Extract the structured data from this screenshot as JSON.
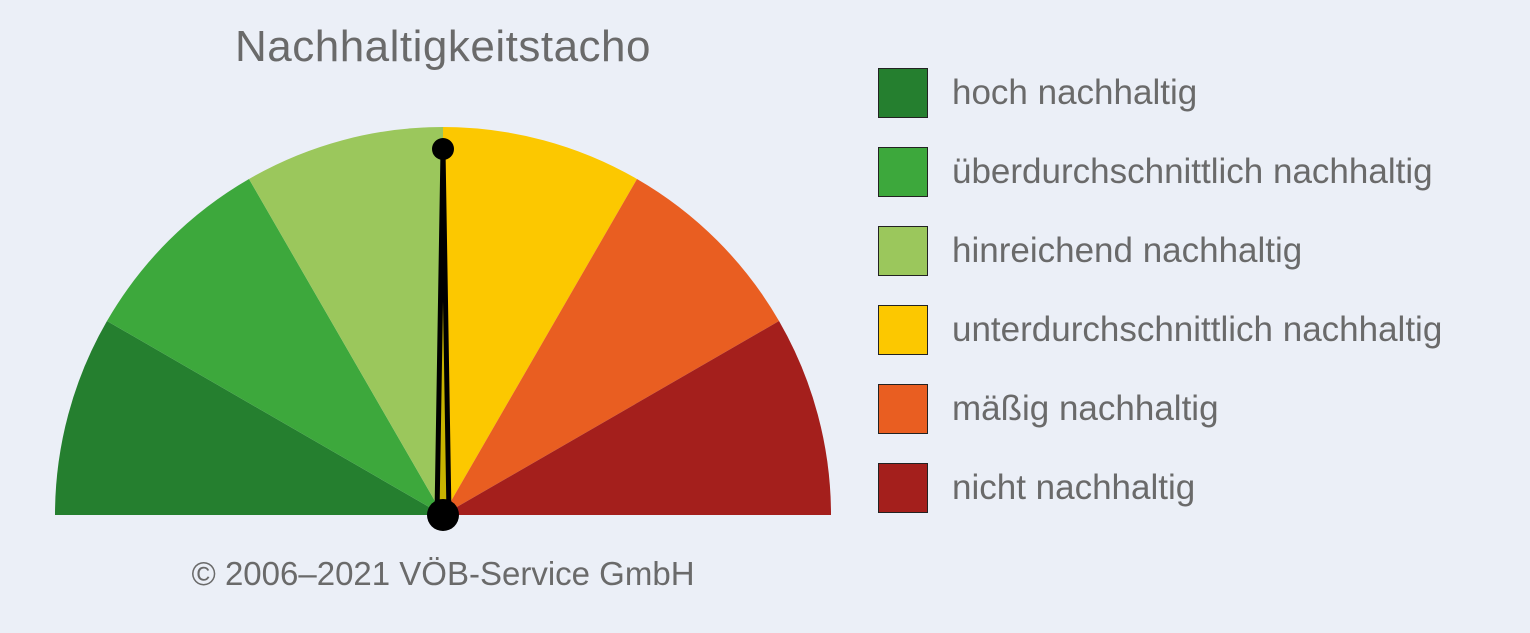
{
  "chart_data": {
    "type": "gauge",
    "title": "Nachhaltigkeitstacho",
    "footer": "© 2006–2021 VÖB-Service GmbH",
    "segments": [
      {
        "label": "hoch nachhaltig",
        "color": "#257f2f"
      },
      {
        "label": "überdurchschnittlich nachhaltig",
        "color": "#3da83c"
      },
      {
        "label": "hinreichend nachhaltig",
        "color": "#9bc75c"
      },
      {
        "label": "unterdurchschnittlich nachhaltig",
        "color": "#fcc800"
      },
      {
        "label": "mäßig nachhaltig",
        "color": "#e95e21"
      },
      {
        "label": "nicht nachhaltig",
        "color": "#a41f1c"
      }
    ],
    "needle_value": 0.5,
    "needle_scale": [
      0,
      1
    ],
    "legend_position": "right"
  }
}
